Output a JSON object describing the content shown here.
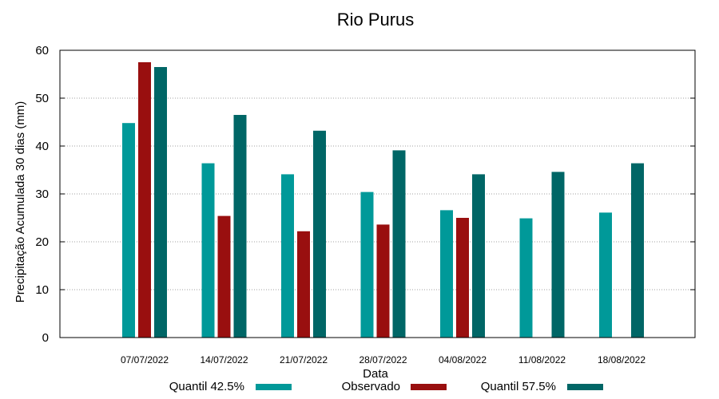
{
  "chart_data": {
    "type": "bar",
    "title": "Rio Purus",
    "xlabel": "Data",
    "ylabel": "Precipitação Acumulada 30 dias (mm)",
    "ylim": [
      0,
      60
    ],
    "yticks": [
      0,
      10,
      20,
      30,
      40,
      50,
      60
    ],
    "grid": true,
    "legend_position": "bottom",
    "categories": [
      "07/07/2022",
      "14/07/2022",
      "21/07/2022",
      "28/07/2022",
      "04/08/2022",
      "11/08/2022",
      "18/08/2022"
    ],
    "series": [
      {
        "name": "Quantil 42.5%",
        "color": "#009999",
        "values": [
          44.8,
          36.4,
          34.1,
          30.4,
          26.6,
          24.9,
          26.1
        ]
      },
      {
        "name": "Observado",
        "color": "#990f0f",
        "values": [
          57.5,
          25.4,
          22.2,
          23.6,
          25.0,
          null,
          null
        ]
      },
      {
        "name": "Quantil 57.5%",
        "color": "#006666",
        "values": [
          56.5,
          46.5,
          43.2,
          39.1,
          34.1,
          34.6,
          36.4
        ]
      }
    ]
  }
}
